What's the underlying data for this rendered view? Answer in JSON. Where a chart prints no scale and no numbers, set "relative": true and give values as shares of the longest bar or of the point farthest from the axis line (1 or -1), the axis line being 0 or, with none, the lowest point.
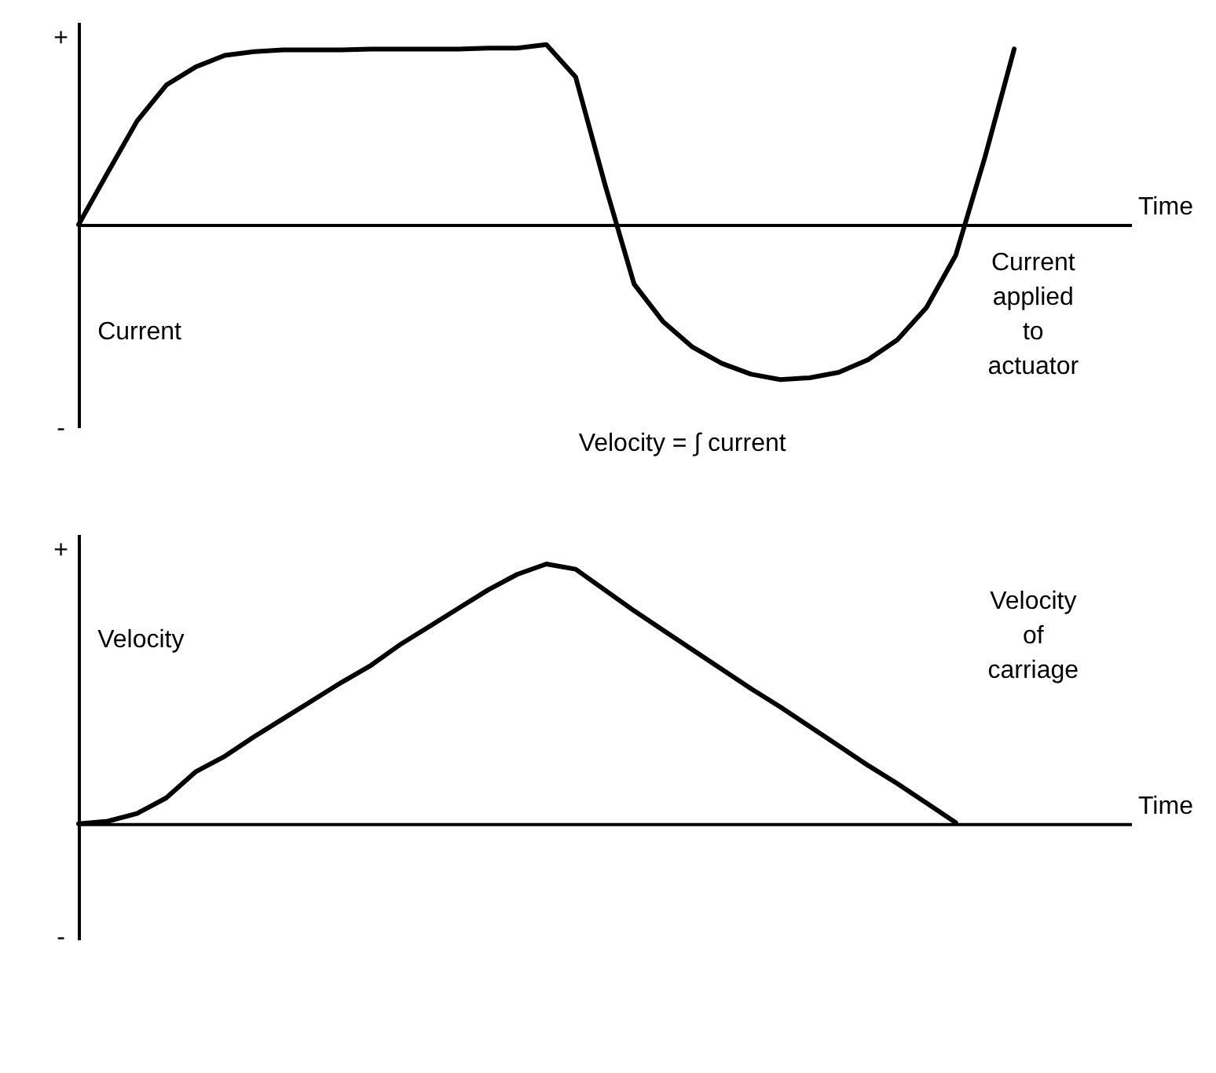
{
  "chart_data": [
    {
      "type": "line",
      "relative": true,
      "xlabel": "Time",
      "annotations": [
        "+",
        "-",
        "Current",
        "Velocity = ∫ current",
        "Current applied to actuator"
      ],
      "categories": [
        null,
        null,
        null,
        null,
        null,
        null,
        null,
        null,
        null,
        null,
        null,
        null,
        null,
        null,
        null,
        null,
        null,
        null,
        null,
        null,
        null,
        null,
        null,
        null,
        null,
        null,
        null,
        null,
        null,
        null,
        null,
        null,
        null,
        null,
        null,
        null,
        null
      ],
      "series": [
        {
          "color": "#000000",
          "values": [
            0,
            0.29,
            0.575,
            0.775,
            0.875,
            0.94,
            0.96,
            0.97,
            0.97,
            0.97,
            0.975,
            0.975,
            0.975,
            0.975,
            0.98,
            0.98,
            1,
            0.82,
            0.225,
            -0.33,
            -0.54,
            -0.68,
            -0.77,
            -0.83,
            -0.86,
            -0.85,
            -0.82,
            -0.75,
            -0.64,
            -0.46,
            -0.17,
            0.375,
            0.975,
            null,
            null,
            null,
            null
          ]
        }
      ]
    },
    {
      "type": "line",
      "relative": true,
      "xlabel": "Time",
      "annotations": [
        "+",
        "-",
        "Velocity",
        "Velocity of carriage"
      ],
      "categories": [
        null,
        null,
        null,
        null,
        null,
        null,
        null,
        null,
        null,
        null,
        null,
        null,
        null,
        null,
        null,
        null,
        null,
        null,
        null,
        null,
        null,
        null,
        null,
        null,
        null,
        null,
        null,
        null,
        null,
        null,
        null,
        null,
        null,
        null,
        null,
        null,
        null
      ],
      "series": [
        {
          "color": "#000000",
          "values": [
            0,
            0.01,
            0.04,
            0.1,
            0.2,
            0.26,
            0.335,
            0.405,
            0.475,
            0.545,
            0.61,
            0.69,
            0.76,
            0.83,
            0.9,
            0.96,
            1,
            0.98,
            0.9,
            0.82,
            0.745,
            0.67,
            0.595,
            0.52,
            0.45,
            0.375,
            0.3,
            0.225,
            0.155,
            0.08,
            0.005,
            null,
            null,
            null,
            null,
            null,
            null
          ]
        }
      ]
    }
  ]
}
